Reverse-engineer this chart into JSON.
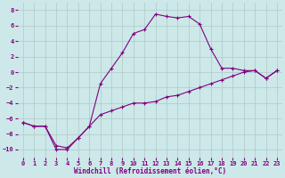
{
  "xlabel": "Windchill (Refroidissement éolien,°C)",
  "background_color": "#cce8e8",
  "line_color": "#800080",
  "grid_color": "#b0c8c8",
  "xlim": [
    -0.5,
    23.5
  ],
  "ylim": [
    -11,
    9
  ],
  "xticks": [
    0,
    1,
    2,
    3,
    4,
    5,
    6,
    7,
    8,
    9,
    10,
    11,
    12,
    13,
    14,
    15,
    16,
    17,
    18,
    19,
    20,
    21,
    22,
    23
  ],
  "yticks": [
    -10,
    -8,
    -6,
    -4,
    -2,
    0,
    2,
    4,
    6,
    8
  ],
  "curve1_x": [
    0,
    1,
    2,
    3,
    4,
    5,
    6,
    7,
    8,
    9,
    10,
    11,
    12,
    13,
    14,
    15,
    16,
    17,
    18,
    19,
    20,
    21,
    22,
    23
  ],
  "curve1_y": [
    -6.5,
    -7.0,
    -7.0,
    -10.0,
    -10.0,
    -8.5,
    -7.0,
    -1.5,
    0.5,
    2.5,
    5.0,
    5.5,
    7.5,
    7.2,
    7.0,
    7.2,
    6.2,
    3.0,
    0.5,
    0.5,
    0.2,
    0.2,
    -0.8,
    0.2
  ],
  "curve2_x": [
    0,
    1,
    2,
    3,
    4,
    5,
    6,
    7,
    8,
    9,
    10,
    11,
    12,
    13,
    14,
    15,
    16,
    17,
    18,
    19,
    20,
    21,
    22,
    23
  ],
  "curve2_y": [
    -6.5,
    -7.0,
    -7.0,
    -9.5,
    -9.8,
    -8.5,
    -7.0,
    -5.5,
    -5.0,
    -4.5,
    -4.0,
    -4.0,
    -3.8,
    -3.2,
    -3.0,
    -2.5,
    -2.0,
    -1.5,
    -1.0,
    -0.5,
    0.0,
    0.2,
    -0.8,
    0.2
  ],
  "xlabel_fontsize": 5.5,
  "tick_fontsize": 5.0,
  "figsize": [
    3.2,
    2.0
  ],
  "dpi": 100
}
